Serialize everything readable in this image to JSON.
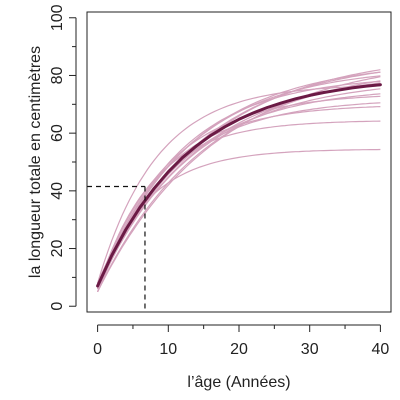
{
  "chart_data": {
    "type": "line",
    "xlabel": "l’âge (Années)",
    "ylabel": "la longueur totale en centimètres",
    "xlim": [
      -1.5,
      41.5
    ],
    "ylim": [
      -2,
      102
    ],
    "xticks": [
      0,
      10,
      20,
      30,
      40
    ],
    "yticks": [
      0,
      20,
      40,
      60,
      80,
      100
    ],
    "grid": false,
    "legend": "none",
    "model": "von Bertalanffy",
    "mean_curve": {
      "color": "#6b1a45",
      "points": [
        [
          0,
          7
        ],
        [
          2,
          17.6
        ],
        [
          4,
          26.6
        ],
        [
          6,
          34.3
        ],
        [
          8,
          40.9
        ],
        [
          10,
          46.6
        ],
        [
          12,
          51.5
        ],
        [
          14,
          55.6
        ],
        [
          16,
          59.2
        ],
        [
          18,
          62.2
        ],
        [
          20,
          64.8
        ],
        [
          22,
          67.0
        ],
        [
          24,
          68.9
        ],
        [
          26,
          70.5
        ],
        [
          28,
          71.9
        ],
        [
          30,
          73.1
        ],
        [
          32,
          74.1
        ],
        [
          34,
          74.9
        ],
        [
          36,
          75.7
        ],
        [
          38,
          76.3
        ],
        [
          40,
          76.8
        ]
      ]
    },
    "individual_curves": {
      "color": "#d4a3bd",
      "series": [
        {
          "Linf": 54.5,
          "K": 0.14,
          "L0": 7
        },
        {
          "Linf": 64.5,
          "K": 0.13,
          "L0": 6
        },
        {
          "Linf": 70.0,
          "K": 0.11,
          "L0": 5
        },
        {
          "Linf": 72.0,
          "K": 0.095,
          "L0": 6
        },
        {
          "Linf": 74.0,
          "K": 0.1,
          "L0": 7
        },
        {
          "Linf": 76.0,
          "K": 0.085,
          "L0": 5
        },
        {
          "Linf": 77.0,
          "K": 0.12,
          "L0": 8
        },
        {
          "Linf": 79.0,
          "K": 0.075,
          "L0": 6
        },
        {
          "Linf": 80.0,
          "K": 0.09,
          "L0": 5
        },
        {
          "Linf": 82.0,
          "K": 0.07,
          "L0": 7
        },
        {
          "Linf": 83.0,
          "K": 0.08,
          "L0": 6
        },
        {
          "Linf": 84.0,
          "K": 0.065,
          "L0": 5
        },
        {
          "Linf": 85.0,
          "K": 0.075,
          "L0": 8
        },
        {
          "Linf": 86.0,
          "K": 0.07,
          "L0": 6
        },
        {
          "Linf": 87.0,
          "K": 0.06,
          "L0": 5
        },
        {
          "Linf": 88.0,
          "K": 0.065,
          "L0": 7
        }
      ]
    },
    "reference_lines": {
      "x": 6.7,
      "y": 41.5,
      "style": "dashed",
      "color": "#111111"
    }
  }
}
